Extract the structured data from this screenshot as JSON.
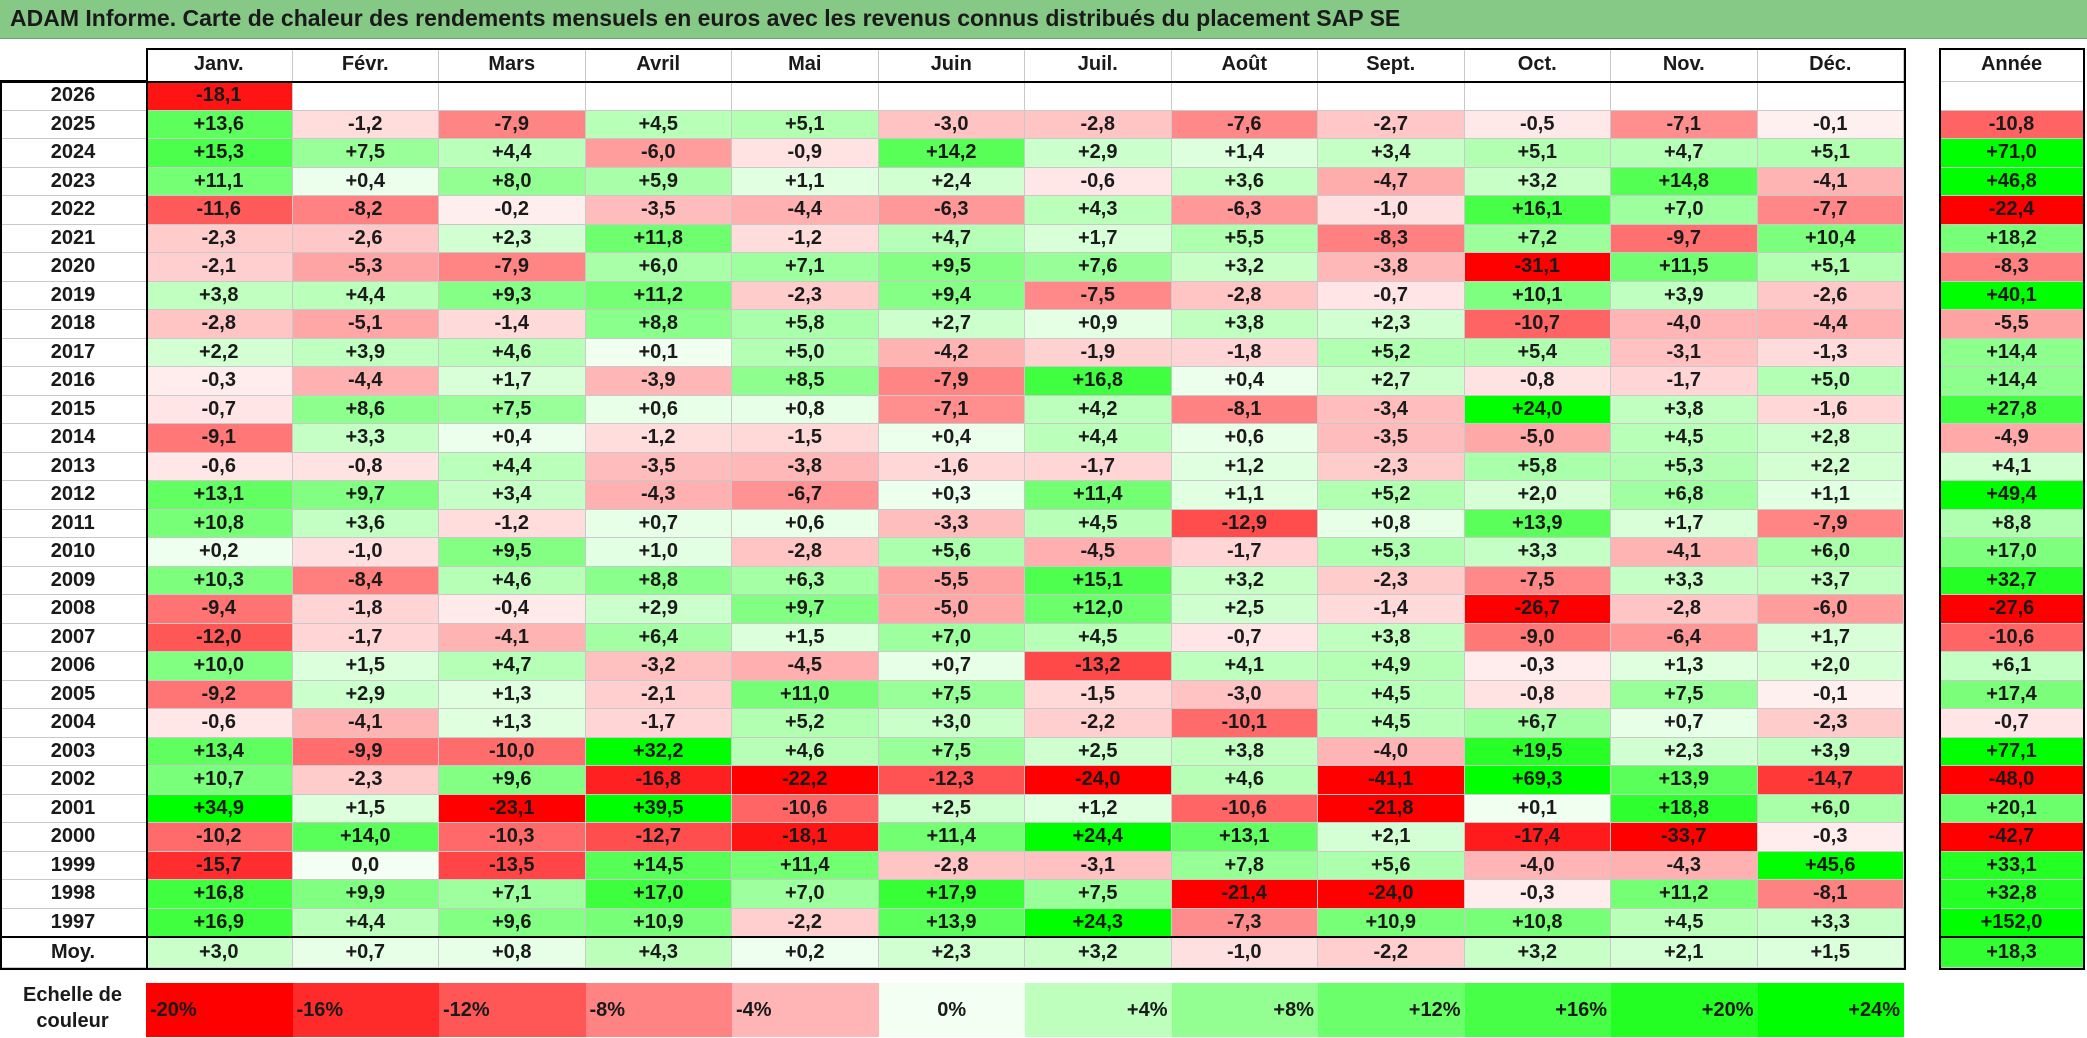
{
  "title": "ADAM Informe. Carte de chaleur des rendements mensuels en euros avec les revenus connus distribués du placement SAP SE",
  "chart_data": {
    "type": "heatmap",
    "months": [
      "Janv.",
      "Févr.",
      "Mars",
      "Avril",
      "Mai",
      "Juin",
      "Juil.",
      "Août",
      "Sept.",
      "Oct.",
      "Nov.",
      "Déc."
    ],
    "year_header": "Année",
    "rows": [
      {
        "year": "2026",
        "months": [
          -18.1
        ],
        "annual": null
      },
      {
        "year": "2025",
        "months": [
          13.6,
          -1.2,
          -7.9,
          4.5,
          5.1,
          -3.0,
          -2.8,
          -7.6,
          -2.7,
          -0.5,
          -7.1,
          -0.1
        ],
        "annual": -10.8
      },
      {
        "year": "2024",
        "months": [
          15.3,
          7.5,
          4.4,
          -6.0,
          -0.9,
          14.2,
          2.9,
          1.4,
          3.4,
          5.1,
          4.7,
          5.1
        ],
        "annual": 71.0
      },
      {
        "year": "2023",
        "months": [
          11.1,
          0.4,
          8.0,
          5.9,
          1.1,
          2.4,
          -0.6,
          3.6,
          -4.7,
          3.2,
          14.8,
          -4.1
        ],
        "annual": 46.8
      },
      {
        "year": "2022",
        "months": [
          -11.6,
          -8.2,
          -0.2,
          -3.5,
          -4.4,
          -6.3,
          4.3,
          -6.3,
          -1.0,
          16.1,
          7.0,
          -7.7
        ],
        "annual": -22.4
      },
      {
        "year": "2021",
        "months": [
          -2.3,
          -2.6,
          2.3,
          11.8,
          -1.2,
          4.7,
          1.7,
          5.5,
          -8.3,
          7.2,
          -9.7,
          10.4
        ],
        "annual": 18.2
      },
      {
        "year": "2020",
        "months": [
          -2.1,
          -5.3,
          -7.9,
          6.0,
          7.1,
          9.5,
          7.6,
          3.2,
          -3.8,
          -31.1,
          11.5,
          5.1
        ],
        "annual": -8.3
      },
      {
        "year": "2019",
        "months": [
          3.8,
          4.4,
          9.3,
          11.2,
          -2.3,
          9.4,
          -7.5,
          -2.8,
          -0.7,
          10.1,
          3.9,
          -2.6
        ],
        "annual": 40.1
      },
      {
        "year": "2018",
        "months": [
          -2.8,
          -5.1,
          -1.4,
          8.8,
          5.8,
          2.7,
          0.9,
          3.8,
          2.3,
          -10.7,
          -4.0,
          -4.4
        ],
        "annual": -5.5
      },
      {
        "year": "2017",
        "months": [
          2.2,
          3.9,
          4.6,
          0.1,
          5.0,
          -4.2,
          -1.9,
          -1.8,
          5.2,
          5.4,
          -3.1,
          -1.3
        ],
        "annual": 14.4
      },
      {
        "year": "2016",
        "months": [
          -0.3,
          -4.4,
          1.7,
          -3.9,
          8.5,
          -7.9,
          16.8,
          0.4,
          2.7,
          -0.8,
          -1.7,
          5.0
        ],
        "annual": 14.4
      },
      {
        "year": "2015",
        "months": [
          -0.7,
          8.6,
          7.5,
          0.6,
          0.8,
          -7.1,
          4.2,
          -8.1,
          -3.4,
          24.0,
          3.8,
          -1.6
        ],
        "annual": 27.8
      },
      {
        "year": "2014",
        "months": [
          -9.1,
          3.3,
          0.4,
          -1.2,
          -1.5,
          0.4,
          4.4,
          0.6,
          -3.5,
          -5.0,
          4.5,
          2.8
        ],
        "annual": -4.9
      },
      {
        "year": "2013",
        "months": [
          -0.6,
          -0.8,
          4.4,
          -3.5,
          -3.8,
          -1.6,
          -1.7,
          1.2,
          -2.3,
          5.8,
          5.3,
          2.2
        ],
        "annual": 4.1
      },
      {
        "year": "2012",
        "months": [
          13.1,
          9.7,
          3.4,
          -4.3,
          -6.7,
          0.3,
          11.4,
          1.1,
          5.2,
          2.0,
          6.8,
          1.1
        ],
        "annual": 49.4
      },
      {
        "year": "2011",
        "months": [
          10.8,
          3.6,
          -1.2,
          0.7,
          0.6,
          -3.3,
          4.5,
          -12.9,
          0.8,
          13.9,
          1.7,
          -7.9
        ],
        "annual": 8.8
      },
      {
        "year": "2010",
        "months": [
          0.2,
          -1.0,
          9.5,
          1.0,
          -2.8,
          5.6,
          -4.5,
          -1.7,
          5.3,
          3.3,
          -4.1,
          6.0
        ],
        "annual": 17.0
      },
      {
        "year": "2009",
        "months": [
          10.3,
          -8.4,
          4.6,
          8.8,
          6.3,
          -5.5,
          15.1,
          3.2,
          -2.3,
          -7.5,
          3.3,
          3.7
        ],
        "annual": 32.7
      },
      {
        "year": "2008",
        "months": [
          -9.4,
          -1.8,
          -0.4,
          2.9,
          9.7,
          -5.0,
          12.0,
          2.5,
          -1.4,
          -26.7,
          -2.8,
          -6.0
        ],
        "annual": -27.6
      },
      {
        "year": "2007",
        "months": [
          -12.0,
          -1.7,
          -4.1,
          6.4,
          1.5,
          7.0,
          4.5,
          -0.7,
          3.8,
          -9.0,
          -6.4,
          1.7
        ],
        "annual": -10.6
      },
      {
        "year": "2006",
        "months": [
          10.0,
          1.5,
          4.7,
          -3.2,
          -4.5,
          0.7,
          -13.2,
          4.1,
          4.9,
          -0.3,
          1.3,
          2.0
        ],
        "annual": 6.1
      },
      {
        "year": "2005",
        "months": [
          -9.2,
          2.9,
          1.3,
          -2.1,
          11.0,
          7.5,
          -1.5,
          -3.0,
          4.5,
          -0.8,
          7.5,
          -0.1
        ],
        "annual": 17.4
      },
      {
        "year": "2004",
        "months": [
          -0.6,
          -4.1,
          1.3,
          -1.7,
          5.2,
          3.0,
          -2.2,
          -10.1,
          4.5,
          6.7,
          0.7,
          -2.3
        ],
        "annual": -0.7
      },
      {
        "year": "2003",
        "months": [
          13.4,
          -9.9,
          -10.0,
          32.2,
          4.6,
          7.5,
          2.5,
          3.8,
          -4.0,
          19.5,
          2.3,
          3.9
        ],
        "annual": 77.1
      },
      {
        "year": "2002",
        "months": [
          10.7,
          -2.3,
          9.6,
          -16.8,
          -22.2,
          -12.3,
          -24.0,
          4.6,
          -41.1,
          69.3,
          13.9,
          -14.7
        ],
        "annual": -48.0
      },
      {
        "year": "2001",
        "months": [
          34.9,
          1.5,
          -23.1,
          39.5,
          -10.6,
          2.5,
          1.2,
          -10.6,
          -21.8,
          0.1,
          18.8,
          6.0
        ],
        "annual": 20.1
      },
      {
        "year": "2000",
        "months": [
          -10.2,
          14.0,
          -10.3,
          -12.7,
          -18.1,
          11.4,
          24.4,
          13.1,
          2.1,
          -17.4,
          -33.7,
          -0.3
        ],
        "annual": -42.7
      },
      {
        "year": "1999",
        "months": [
          -15.7,
          0.0,
          -13.5,
          14.5,
          11.4,
          -2.8,
          -3.1,
          7.8,
          5.6,
          -4.0,
          -4.3,
          45.6
        ],
        "annual": 33.1
      },
      {
        "year": "1998",
        "months": [
          16.8,
          9.9,
          7.1,
          17.0,
          7.0,
          17.9,
          7.5,
          -21.4,
          -24.0,
          -0.3,
          11.2,
          -8.1
        ],
        "annual": 32.8
      },
      {
        "year": "1997",
        "months": [
          16.9,
          4.4,
          9.6,
          10.9,
          -2.2,
          13.9,
          24.3,
          -7.3,
          10.9,
          10.8,
          4.5,
          3.3
        ],
        "annual": 152.0
      }
    ],
    "average": {
      "label": "Moy.",
      "months": [
        3.0,
        0.7,
        0.8,
        4.3,
        0.2,
        2.3,
        3.2,
        -1.0,
        -2.2,
        3.2,
        2.1,
        1.5
      ],
      "annual": 18.3
    },
    "scale": {
      "label_line1": "Echelle de",
      "label_line2": "couleur",
      "steps": [
        {
          "label": "-20%",
          "value": -20
        },
        {
          "label": "-16%",
          "value": -16
        },
        {
          "label": "-12%",
          "value": -12
        },
        {
          "label": "-8%",
          "value": -8
        },
        {
          "label": "-4%",
          "value": -4
        },
        {
          "label": "0%",
          "value": 0
        },
        {
          "label": "+4%",
          "value": 4
        },
        {
          "label": "+8%",
          "value": 8
        },
        {
          "label": "+12%",
          "value": 12
        },
        {
          "label": "+16%",
          "value": 16
        },
        {
          "label": "+20%",
          "value": 20
        },
        {
          "label": "+24%",
          "value": 24
        }
      ]
    },
    "colors": {
      "negative_max": "#ff0000",
      "positive_max": "#00ff00",
      "neutral": "#ffffff",
      "title_bar": "#86c886"
    }
  }
}
